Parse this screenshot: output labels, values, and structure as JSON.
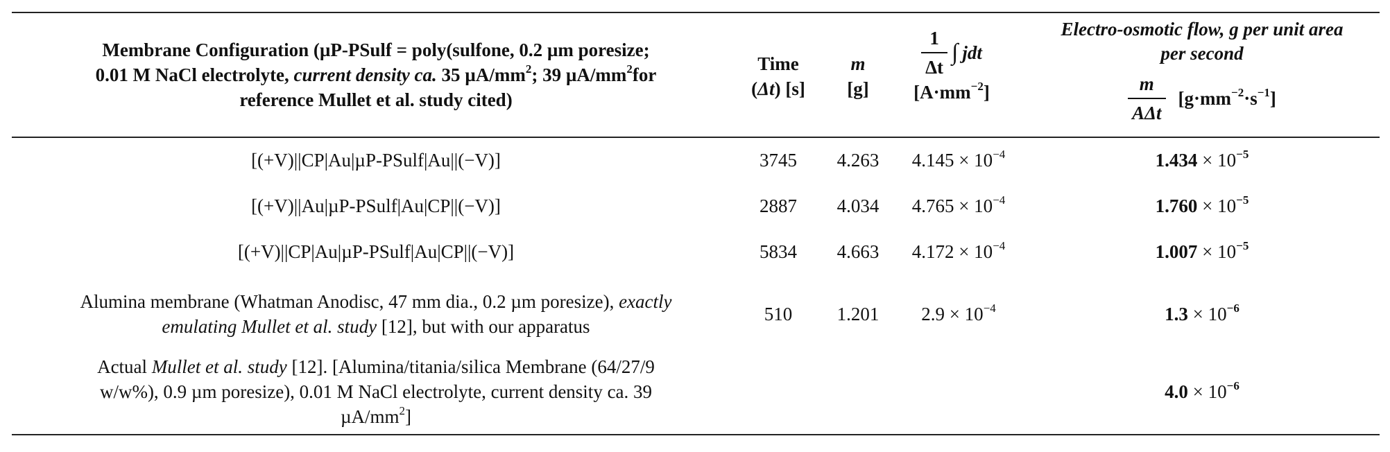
{
  "table": {
    "header": {
      "config_line1": "Membrane Configuration (µP-PSulf = poly(sulfone, 0.2 µm poresize;",
      "config_line2_a": "0.01 M NaCl electrolyte, ",
      "config_line2_ital": "current density ca.",
      "config_line2_b": " 35 µA/mm",
      "config_line2_sup": "2",
      "config_line2_c": "; 39 µA/mm",
      "config_line2_sup2": "2",
      "config_line2_d": "for",
      "config_line3": "reference Mullet et al. study cited)",
      "time_line1": "Time",
      "time_line2_a": "(",
      "time_line2_ital": "Δt",
      "time_line2_b": ") [s]",
      "m_line1": "m",
      "m_line2": "[g]",
      "jdt_num": "1",
      "jdt_den": "Δt",
      "jdt_integral": "∫",
      "jdt_expr": "jdt",
      "jdt_unit_a": "[A·mm",
      "jdt_unit_sup": "−2",
      "jdt_unit_b": "]",
      "eof_line1": "Electro-osmotic flow, g per unit area",
      "eof_line2": "per second",
      "eof_num": "m",
      "eof_den": "AΔt",
      "eof_unit_a": "[g·mm",
      "eof_unit_sup1": "−2",
      "eof_unit_b": "·s",
      "eof_unit_sup2": "−1",
      "eof_unit_c": "]"
    },
    "rows": [
      {
        "config": "[(+V)||CP|Au|µP-PSulf|Au||(−V)]",
        "time": "3745",
        "m": "4.263",
        "jdt_base": "4.145 × 10",
        "jdt_exp": "−4",
        "eof_base": "1.434",
        "eof_times": " × 10",
        "eof_exp": "−5"
      },
      {
        "config": "[(+V)||Au|µP-PSulf|Au|CP||(−V)]",
        "time": "2887",
        "m": "4.034",
        "jdt_base": "4.765 × 10",
        "jdt_exp": "−4",
        "eof_base": "1.760",
        "eof_times": " × 10",
        "eof_exp": "−5"
      },
      {
        "config": "[(+V)||CP|Au|µP-PSulf|Au|CP||(−V)]",
        "time": "5834",
        "m": "4.663",
        "jdt_base": "4.172 × 10",
        "jdt_exp": "−4",
        "eof_base": "1.007",
        "eof_times": " × 10",
        "eof_exp": "−5"
      },
      {
        "config_line1_a": "Alumina membrane (Whatman Anodisc, 47 mm dia., 0.2 µm poresize), ",
        "config_line1_ital": "exactly",
        "config_line2_ital": "emulating Mullet et al. study",
        "config_line2_b": " [12], but with our apparatus",
        "time": "510",
        "m": "1.201",
        "jdt_base": "2.9 × 10",
        "jdt_exp": "−4",
        "eof_base": "1.3",
        "eof_times": " × 10",
        "eof_exp": "−6"
      },
      {
        "config_line1_a": "Actual ",
        "config_line1_ital": "Mullet et al. study",
        "config_line1_b": " [12]. [Alumina/titania/silica Membrane (64/27/9",
        "config_line2": "w/w%), 0.9 µm poresize), 0.01 M NaCl electrolyte, current density ca. 39",
        "config_line3_a": "µA/mm",
        "config_line3_sup": "2",
        "config_line3_b": "]",
        "time": "",
        "m": "",
        "jdt_base": "",
        "jdt_exp": "",
        "eof_base": "4.0",
        "eof_times": " × 10",
        "eof_exp": "−6"
      }
    ]
  }
}
